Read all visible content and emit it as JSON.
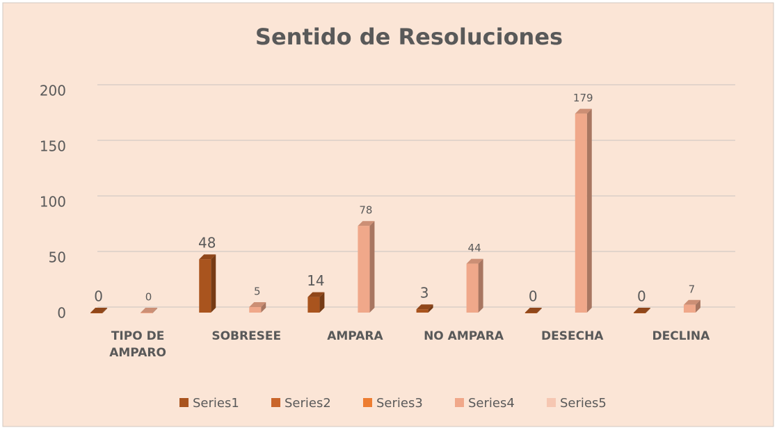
{
  "chart_data": {
    "type": "bar",
    "title": "Sentido de Resoluciones",
    "categories": [
      "TIPO DE\nAMPARO",
      "SOBRESEE",
      "AMPARA",
      "NO AMPARA",
      "DESECHA",
      "DECLINA"
    ],
    "series": [
      {
        "name": "Series1",
        "color": "#a9541e",
        "values": [
          0,
          48,
          14,
          3,
          0,
          0
        ]
      },
      {
        "name": "Series2",
        "color": "#c9652a",
        "values": [
          null,
          null,
          null,
          null,
          null,
          null
        ]
      },
      {
        "name": "Series3",
        "color": "#ed7d31",
        "values": [
          null,
          null,
          null,
          null,
          null,
          null
        ]
      },
      {
        "name": "Series4",
        "color": "#f0a88a",
        "values": [
          0,
          5,
          78,
          44,
          179,
          7
        ]
      },
      {
        "name": "Series5",
        "color": "#f6c7b2",
        "values": [
          null,
          null,
          null,
          null,
          null,
          null
        ]
      }
    ],
    "ylim": [
      0,
      200
    ],
    "yticks": [
      0,
      50,
      100,
      150,
      200
    ],
    "grid": true,
    "legend": "bottom"
  }
}
